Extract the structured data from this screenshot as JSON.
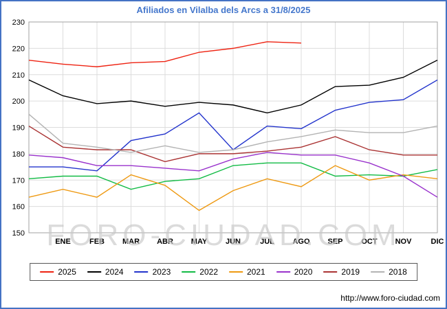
{
  "title": "Afiliados en Vilalba dels Arcs a 31/8/2025",
  "watermark": "FORO-CIUDAD.COM",
  "footer_url": "http://www.foro-ciudad.com",
  "chart_data": {
    "type": "line",
    "title": "Afiliados en Vilalba dels Arcs a 31/8/2025",
    "x_labels": [
      "",
      "ENE",
      "FEB",
      "MAR",
      "ABR",
      "MAY",
      "JUN",
      "JUL",
      "AGO",
      "SEP",
      "OCT",
      "NOV",
      "DIC"
    ],
    "ylim": [
      150,
      230
    ],
    "ytick_step": 10,
    "grid": true,
    "legend_position": "bottom",
    "series": [
      {
        "name": "2025",
        "color": "#ee2211",
        "values": [
          215.5,
          214,
          213,
          214.5,
          215,
          218.5,
          220,
          222.5,
          222
        ]
      },
      {
        "name": "2024",
        "color": "#000000",
        "values": [
          208,
          202,
          199,
          200,
          198,
          199.5,
          198.5,
          195.5,
          198.5,
          205.5,
          206,
          209,
          215.5
        ]
      },
      {
        "name": "2023",
        "color": "#2233cc",
        "values": [
          175,
          175,
          173.5,
          185,
          187.5,
          195.5,
          181.5,
          190.5,
          189.5,
          196.5,
          199.5,
          200.5,
          208
        ]
      },
      {
        "name": "2022",
        "color": "#11bb44",
        "values": [
          170.5,
          171.5,
          171.5,
          166.5,
          169.5,
          170.5,
          175.5,
          176.5,
          176.5,
          171.5,
          172,
          171.5,
          174
        ]
      },
      {
        "name": "2021",
        "color": "#ee9911",
        "values": [
          163.5,
          166.5,
          163.5,
          172,
          168,
          158.5,
          166,
          170.5,
          167.5,
          175.5,
          170,
          172,
          170.5
        ]
      },
      {
        "name": "2020",
        "color": "#9932cc",
        "values": [
          179.5,
          178.5,
          175.5,
          175.5,
          174.5,
          173.5,
          178,
          180.5,
          179.5,
          179.5,
          176.5,
          171.5,
          163.5
        ]
      },
      {
        "name": "2019",
        "color": "#aa3333",
        "values": [
          190.5,
          182.5,
          181.5,
          181.5,
          177,
          180,
          180,
          181,
          182.5,
          186.5,
          181.5,
          179.5,
          179.5
        ]
      },
      {
        "name": "2018",
        "color": "#b3b3b3",
        "values": [
          195,
          184,
          182.5,
          180.5,
          183,
          180.5,
          181.5,
          184.5,
          186.5,
          189,
          188,
          188,
          190.5
        ]
      }
    ]
  }
}
